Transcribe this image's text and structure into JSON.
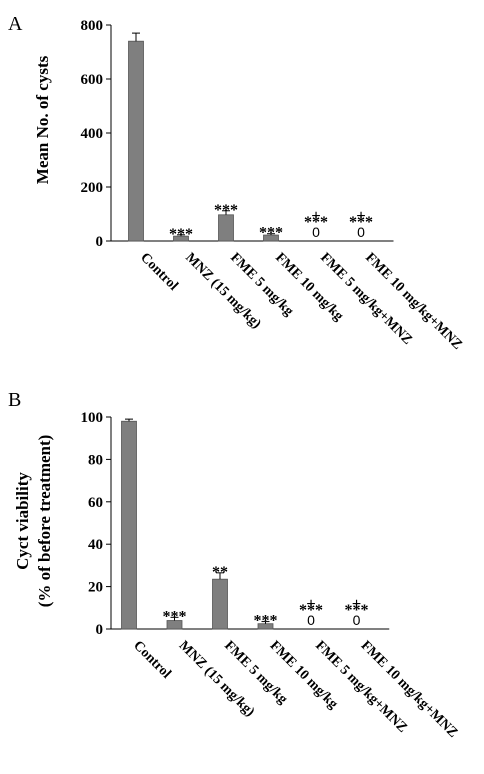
{
  "chart_data": [
    {
      "type": "bar",
      "panel": "A",
      "ylabel": "Mean No. of cysts",
      "ylim": [
        0,
        800
      ],
      "yticks": [
        0,
        200,
        400,
        600,
        800
      ],
      "categories": [
        "Control",
        "MNZ (15 mg/kg)",
        "FME 5 mg/kg",
        "FME 10 mg/kg",
        "FME 5 mg/kg+MNZ",
        "FME 10 mg/kg+MNZ"
      ],
      "values": [
        740,
        18,
        97,
        22,
        0,
        0
      ],
      "errors": [
        30,
        5,
        15,
        5,
        0,
        0
      ],
      "significance": [
        "",
        "***",
        "***",
        "***",
        "***",
        "***"
      ],
      "plus_marks": [
        "",
        "",
        "",
        "",
        "+",
        "+"
      ],
      "value_labels": [
        "",
        "",
        "",
        "",
        "0",
        "0"
      ],
      "bar_color": "#7f7f7f"
    },
    {
      "type": "bar",
      "panel": "B",
      "ylabel_lines": [
        "Cyct viability",
        "(% of before treatment)"
      ],
      "ylim": [
        0,
        100
      ],
      "yticks": [
        0,
        20,
        40,
        60,
        80,
        100
      ],
      "categories": [
        "Control",
        "MNZ (15 mg/kg)",
        "FME 5 mg/kg",
        "FME 10 mg/kg",
        "FME 5 mg/kg+MNZ",
        "FME 10 mg/kg+MNZ"
      ],
      "values": [
        98,
        4,
        23.5,
        2.5,
        0,
        0
      ],
      "errors": [
        1,
        1.5,
        3,
        1,
        0,
        0
      ],
      "significance": [
        "",
        "***",
        "**",
        "***",
        "***",
        "***"
      ],
      "plus_marks": [
        "",
        "",
        "",
        "",
        "+",
        "+"
      ],
      "value_labels": [
        "",
        "",
        "",
        "",
        "0",
        "0"
      ],
      "bar_color": "#7f7f7f"
    }
  ]
}
